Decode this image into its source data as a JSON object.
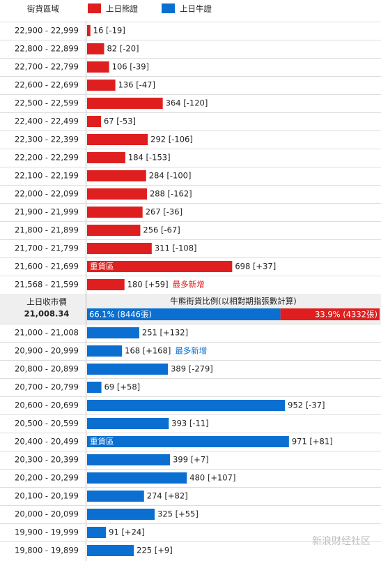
{
  "header": {
    "range_title": "街貨區域"
  },
  "bear": {
    "name": "上日熊證",
    "color": "#df1f1f",
    "note_color": "#df1f1f",
    "rows": [
      {
        "range": "22,900 - 22,999",
        "value": 16,
        "label": "16 [-19]"
      },
      {
        "range": "22,800 - 22,899",
        "value": 82,
        "label": "82 [-20]"
      },
      {
        "range": "22,700 - 22,799",
        "value": 106,
        "label": "106 [-39]"
      },
      {
        "range": "22,600 - 22,699",
        "value": 136,
        "label": "136 [-47]"
      },
      {
        "range": "22,500 - 22,599",
        "value": 364,
        "label": "364 [-120]"
      },
      {
        "range": "22,400 - 22,499",
        "value": 67,
        "label": "67 [-53]"
      },
      {
        "range": "22,300 - 22,399",
        "value": 292,
        "label": "292 [-106]"
      },
      {
        "range": "22,200 - 22,299",
        "value": 184,
        "label": "184 [-153]"
      },
      {
        "range": "22,100 - 22,199",
        "value": 284,
        "label": "284 [-100]"
      },
      {
        "range": "22,000 - 22,099",
        "value": 288,
        "label": "288 [-162]"
      },
      {
        "range": "21,900 - 21,999",
        "value": 267,
        "label": "267 [-36]"
      },
      {
        "range": "21,800 - 21,899",
        "value": 256,
        "label": "256 [-67]"
      },
      {
        "range": "21,700 - 21,799",
        "value": 311,
        "label": "311 [-108]"
      },
      {
        "range": "21,600 - 21,699",
        "value": 698,
        "label": "698 [+37]",
        "inside": "重貨區"
      },
      {
        "range": "21,568 - 21,599",
        "value": 180,
        "label": "180 [+59]",
        "note": "最多新增"
      }
    ]
  },
  "middle": {
    "close_title": "上日收市價",
    "close_value": "21,008.34",
    "ratio_title": "牛熊街貨比例(以相對期指張數計算)",
    "bull_ratio": {
      "value": 66.1,
      "label": "66.1% (8446張)"
    },
    "bear_ratio": {
      "value": 33.9,
      "label": "33.9% (4332張)"
    }
  },
  "bull": {
    "name": "上日牛證",
    "color": "#0a6fd1",
    "note_color": "#0a6fd1",
    "rows": [
      {
        "range": "21,000 - 21,008",
        "value": 251,
        "label": "251 [+132]"
      },
      {
        "range": "20,900 - 20,999",
        "value": 168,
        "label": "168 [+168]",
        "note": "最多新增"
      },
      {
        "range": "20,800 - 20,899",
        "value": 389,
        "label": "389 [-279]"
      },
      {
        "range": "20,700 - 20,799",
        "value": 69,
        "label": "69 [+58]"
      },
      {
        "range": "20,600 - 20,699",
        "value": 952,
        "label": "952 [-37]"
      },
      {
        "range": "20,500 - 20,599",
        "value": 393,
        "label": "393 [-11]"
      },
      {
        "range": "20,400 - 20,499",
        "value": 971,
        "label": "971 [+81]",
        "inside": "重貨區"
      },
      {
        "range": "20,300 - 20,399",
        "value": 399,
        "label": "399 [+7]"
      },
      {
        "range": "20,200 - 20,299",
        "value": 480,
        "label": "480 [+107]"
      },
      {
        "range": "20,100 - 20,199",
        "value": 274,
        "label": "274 [+82]"
      },
      {
        "range": "20,000 - 20,099",
        "value": 325,
        "label": "325 [+55]"
      },
      {
        "range": "19,900 - 19,999",
        "value": 91,
        "label": "91 [+24]"
      },
      {
        "range": "19,800 - 19,899",
        "value": 225,
        "label": "225 [+9]"
      }
    ]
  },
  "watermark": "新浪财经社区"
}
